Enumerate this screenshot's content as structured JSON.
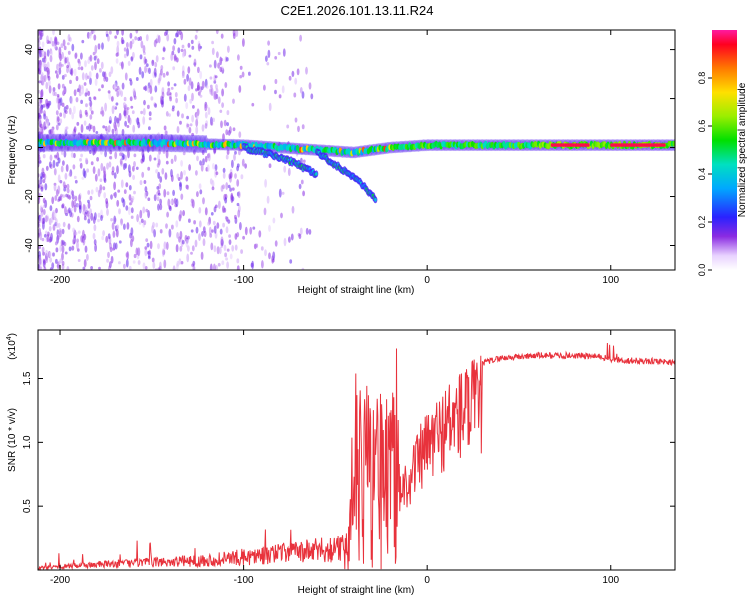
{
  "title": "C2E1.2026.101.13.11.R24",
  "chart_data": [
    {
      "type": "heatmap",
      "name": "spectrogram",
      "xlabel": "Height of straight line (km)",
      "ylabel": "Frequency (Hz)",
      "xlim": [
        -212,
        135
      ],
      "ylim": [
        -50,
        48
      ],
      "xticks": [
        -200,
        -100,
        0,
        100
      ],
      "yticks": [
        -40,
        -20,
        0,
        20,
        40
      ],
      "colorbar": {
        "label": "Normalized spectral amplitude",
        "range": [
          0,
          1
        ],
        "ticks": [
          0.0,
          0.2,
          0.4,
          0.6,
          0.8
        ]
      },
      "tracks": [
        {
          "name": "main-carrier",
          "points": [
            [
              -212,
              2
            ],
            [
              -150,
              2
            ],
            [
              -100,
              1
            ],
            [
              -80,
              0
            ],
            [
              -60,
              -1
            ],
            [
              -40,
              -2
            ],
            [
              -20,
              0
            ],
            [
              0,
              1
            ],
            [
              30,
              1
            ],
            [
              70,
              1
            ],
            [
              100,
              1
            ],
            [
              135,
              1
            ]
          ]
        },
        {
          "name": "descending-branch-1",
          "points": [
            [
              -100,
              0
            ],
            [
              -90,
              -2
            ],
            [
              -80,
              -4
            ],
            [
              -70,
              -7
            ],
            [
              -60,
              -11
            ]
          ]
        },
        {
          "name": "descending-branch-2",
          "points": [
            [
              -60,
              -2
            ],
            [
              -50,
              -7
            ],
            [
              -40,
              -12
            ],
            [
              -33,
              -17
            ],
            [
              -28,
              -21
            ]
          ]
        }
      ]
    },
    {
      "type": "line",
      "name": "snr",
      "xlabel": "Height of straight line (km)",
      "ylabel": "SNR (10 * v/v)",
      "scale_label": "(x10",
      "scale_exp": "4",
      "xlim": [
        -212,
        135
      ],
      "ylim": [
        0,
        1.88
      ],
      "xticks": [
        -200,
        -100,
        0,
        100
      ],
      "yticks": [
        0.5,
        1.0,
        1.5
      ],
      "color": "#e8323c",
      "envelope": [
        [
          -212,
          0.02
        ],
        [
          -180,
          0.05
        ],
        [
          -150,
          0.07
        ],
        [
          -120,
          0.09
        ],
        [
          -100,
          0.12
        ],
        [
          -80,
          0.15
        ],
        [
          -60,
          0.18
        ],
        [
          -45,
          0.2
        ],
        [
          -40,
          0.5
        ],
        [
          -35,
          0.6
        ],
        [
          -30,
          0.65
        ],
        [
          -25,
          0.65
        ],
        [
          -20,
          0.62
        ],
        [
          -15,
          0.75
        ],
        [
          -10,
          0.9
        ],
        [
          -5,
          1.05
        ],
        [
          0,
          1.2
        ],
        [
          10,
          1.4
        ],
        [
          20,
          1.55
        ],
        [
          30,
          1.62
        ],
        [
          40,
          1.66
        ],
        [
          60,
          1.68
        ],
        [
          80,
          1.68
        ],
        [
          95,
          1.67
        ],
        [
          100,
          1.65
        ],
        [
          110,
          1.64
        ],
        [
          135,
          1.63
        ]
      ]
    }
  ]
}
